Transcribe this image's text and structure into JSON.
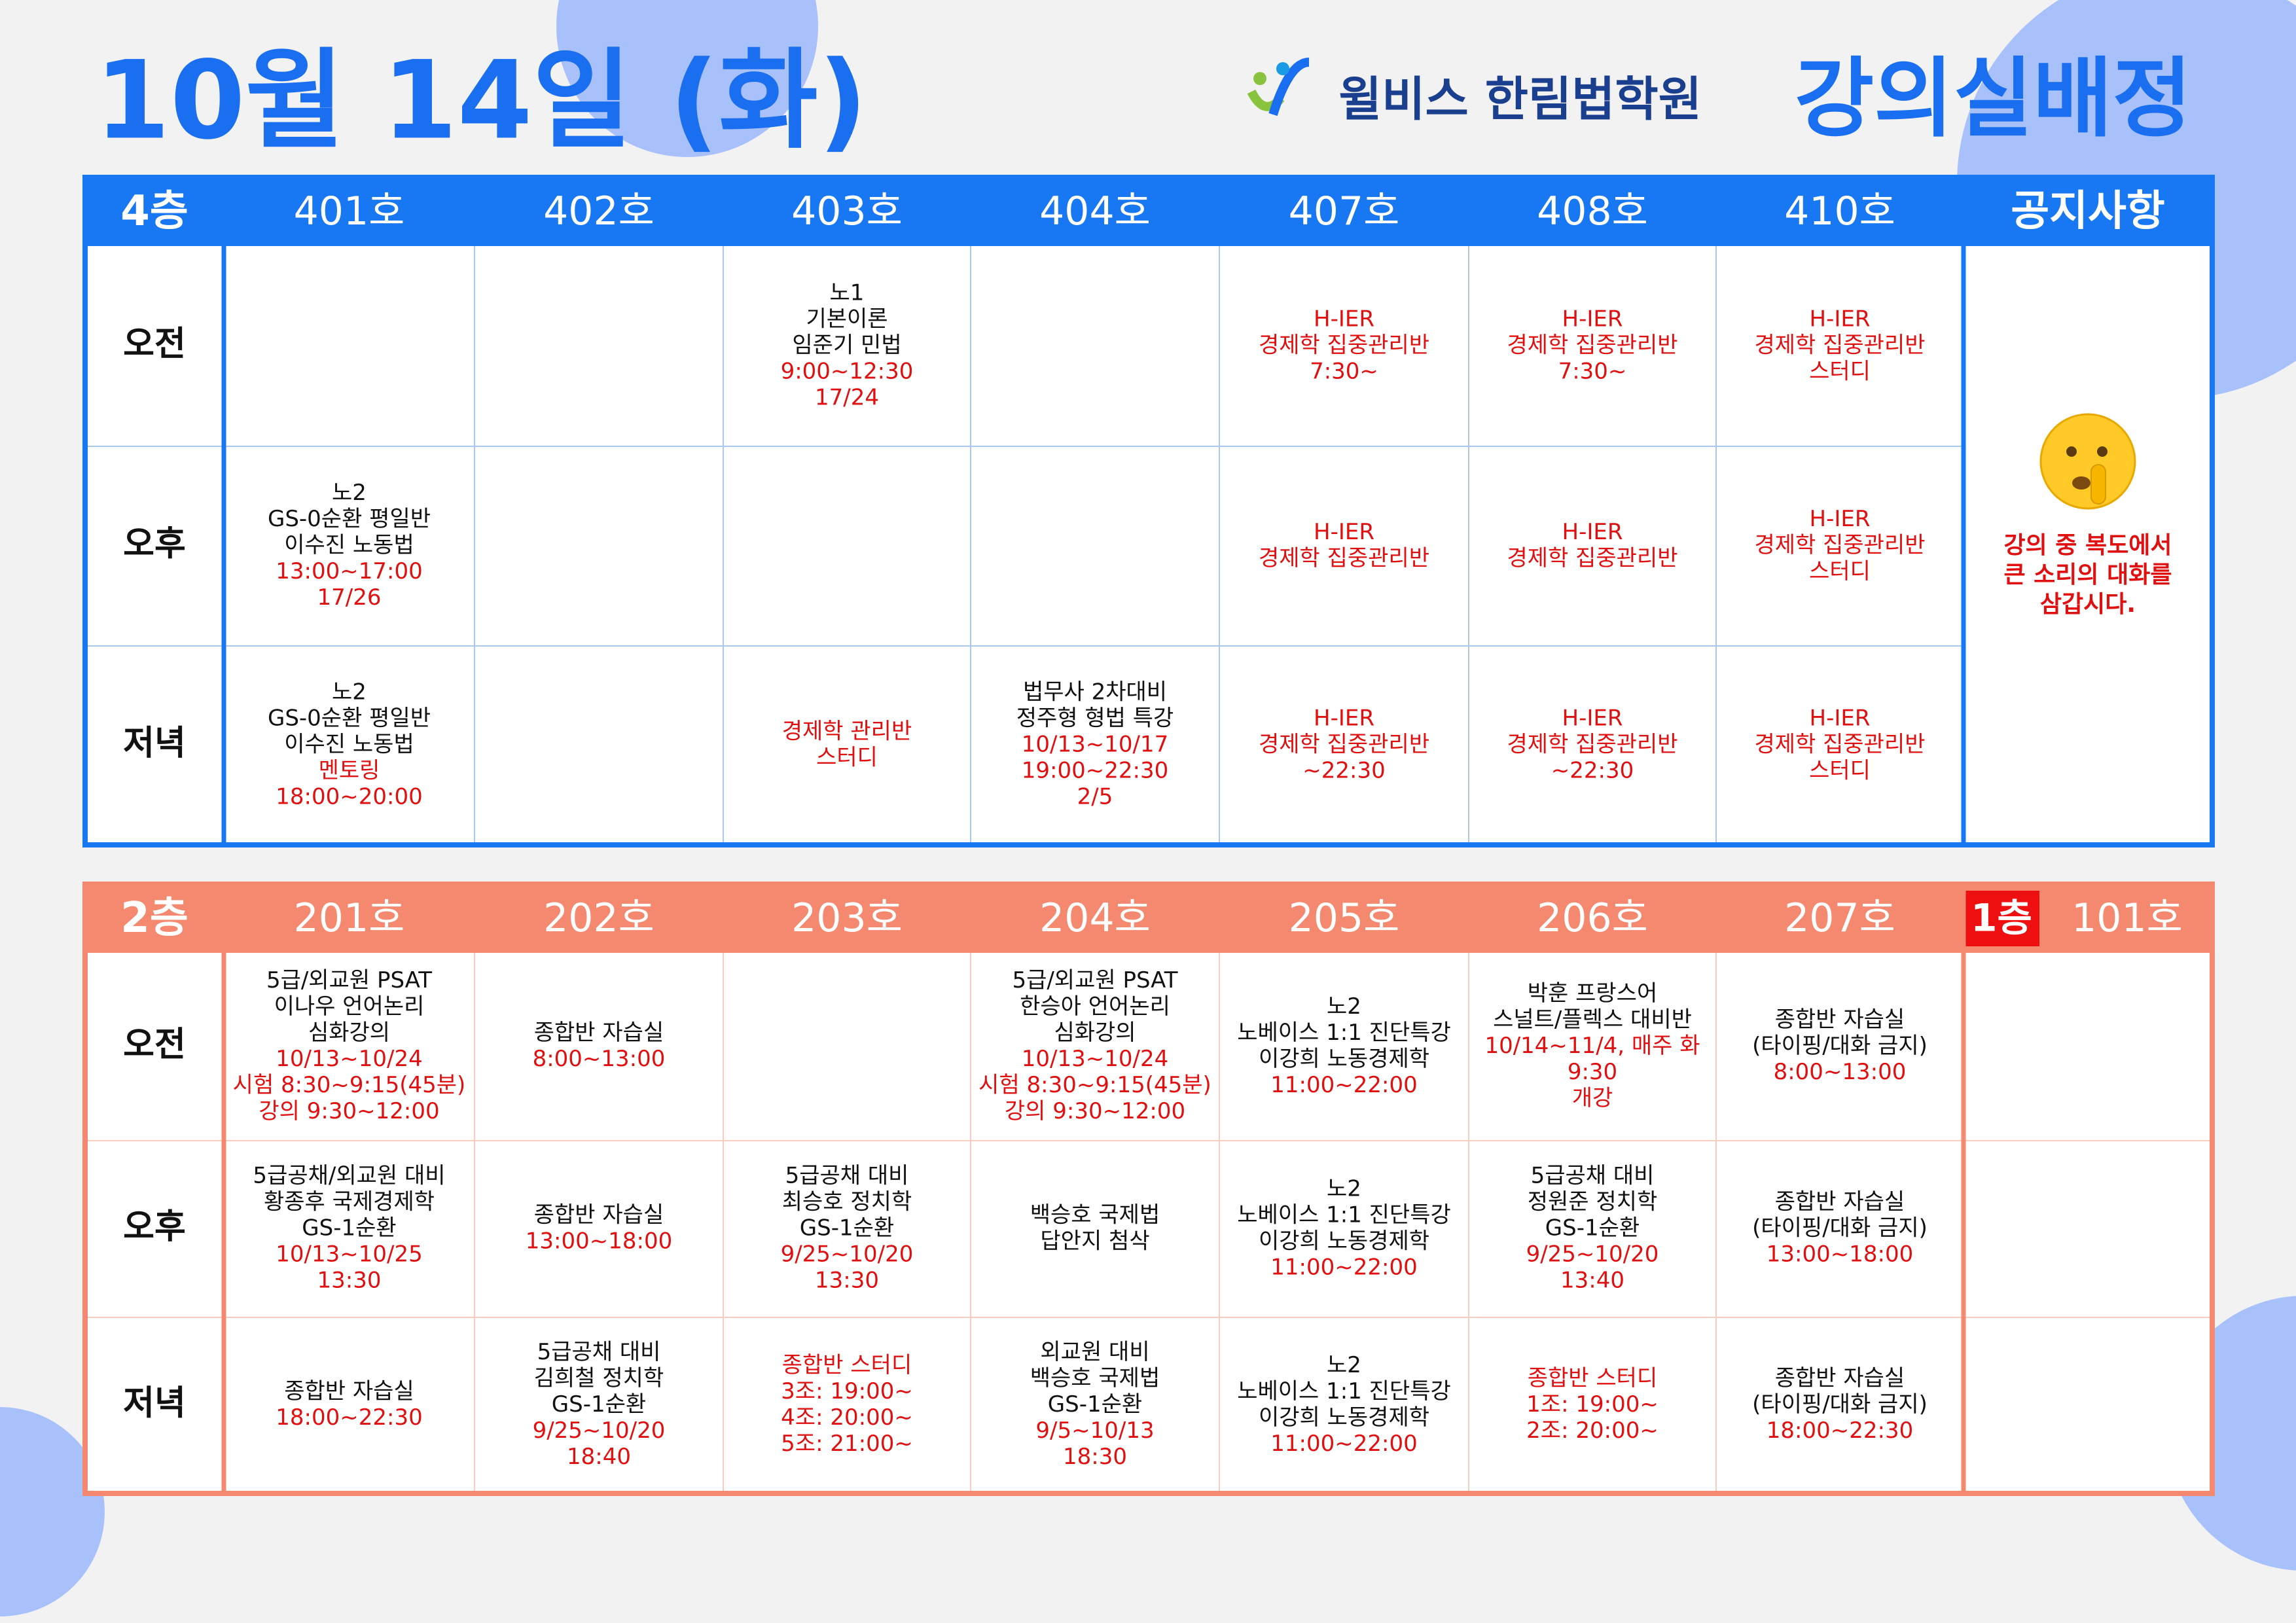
{
  "title": "10월 14일 (화)",
  "logo": "윌비스 한림법학원",
  "heading": "강의실배정",
  "floor4": {
    "label": "4층",
    "rooms": [
      "401호",
      "402호",
      "403호",
      "404호",
      "407호",
      "408호",
      "410호"
    ],
    "notice_title": "공지사항",
    "notice": [
      "강의 중 복도에서",
      "큰 소리의 대화를",
      "삼갑시다."
    ],
    "periods": [
      "오전",
      "오후",
      "저녁"
    ],
    "cells": [
      [
        null,
        null,
        {
          "lines": [
            "노1",
            "기본이론",
            "임준기 민법"
          ],
          "red_lines": [
            "9:00~12:30",
            "17/24"
          ]
        },
        null,
        {
          "red_lines": [
            "H-IER",
            "경제학 집중관리반",
            "7:30~"
          ]
        },
        {
          "red_lines": [
            "H-IER",
            "경제학 집중관리반",
            "7:30~"
          ]
        },
        {
          "red_lines": [
            "H-IER",
            "경제학 집중관리반",
            "스터디"
          ]
        }
      ],
      [
        {
          "lines": [
            "노2",
            "GS-0순환 평일반",
            "이수진 노동법"
          ],
          "red_lines": [
            "13:00~17:00",
            "17/26"
          ]
        },
        null,
        null,
        null,
        {
          "red_lines": [
            "H-IER",
            "경제학 집중관리반"
          ]
        },
        {
          "red_lines": [
            "H-IER",
            "경제학 집중관리반"
          ]
        },
        {
          "red_lines": [
            "H-IER",
            "경제학 집중관리반",
            "스터디"
          ]
        }
      ],
      [
        {
          "lines": [
            "노2",
            "GS-0순환 평일반",
            "이수진 노동법"
          ],
          "red_lines": [
            "멘토링",
            "18:00~20:00"
          ]
        },
        null,
        {
          "red_lines": [
            "경제학 관리반",
            "스터디"
          ]
        },
        {
          "lines": [
            "법무사 2차대비",
            "정주형 형법 특강"
          ],
          "red_lines": [
            "10/13~10/17",
            "19:00~22:30",
            "2/5"
          ]
        },
        {
          "red_lines": [
            "H-IER",
            "경제학 집중관리반",
            "~22:30"
          ]
        },
        {
          "red_lines": [
            "H-IER",
            "경제학 집중관리반",
            "~22:30"
          ]
        },
        {
          "red_lines": [
            "H-IER",
            "경제학 집중관리반",
            "스터디"
          ]
        }
      ]
    ]
  },
  "floor2": {
    "label": "2층",
    "rooms": [
      "201호",
      "202호",
      "203호",
      "204호",
      "205호",
      "206호",
      "207호"
    ],
    "floor1_label": "1층",
    "floor1_room": "101호",
    "periods": [
      "오전",
      "오후",
      "저녁"
    ],
    "cells": [
      [
        {
          "lines": [
            "5급/외교원 PSAT",
            "이나우 언어논리",
            "심화강의"
          ],
          "red_lines": [
            "10/13~10/24",
            "시험 8:30~9:15(45분)",
            "강의 9:30~12:00"
          ]
        },
        {
          "lines": [
            "종합반 자습실"
          ],
          "red_lines": [
            "8:00~13:00"
          ]
        },
        null,
        {
          "lines": [
            "5급/외교원 PSAT",
            "한승아 언어논리",
            "심화강의"
          ],
          "red_lines": [
            "10/13~10/24",
            "시험 8:30~9:15(45분)",
            "강의 9:30~12:00"
          ]
        },
        {
          "lines": [
            "노2",
            "노베이스 1:1 진단특강",
            "이강희 노동경제학"
          ],
          "red_lines": [
            "11:00~22:00"
          ]
        },
        {
          "lines": [
            "박훈 프랑스어",
            "스널트/플렉스 대비반"
          ],
          "red_lines": [
            "10/14~11/4, 매주 화",
            "9:30",
            "개강"
          ]
        },
        {
          "lines": [
            "종합반 자습실",
            "(타이핑/대화 금지)"
          ],
          "red_lines": [
            "8:00~13:00"
          ]
        },
        null
      ],
      [
        {
          "lines": [
            "5급공채/외교원 대비",
            "황종후 국제경제학",
            "GS-1순환"
          ],
          "red_lines": [
            "10/13~10/25",
            "13:30"
          ]
        },
        {
          "lines": [
            "종합반 자습실"
          ],
          "red_lines": [
            "13:00~18:00"
          ]
        },
        {
          "lines": [
            "5급공채 대비",
            "최승호 정치학",
            "GS-1순환"
          ],
          "red_lines": [
            "9/25~10/20",
            "13:30"
          ]
        },
        {
          "lines": [
            "백승호 국제법",
            "답안지 첨삭"
          ]
        },
        {
          "lines": [
            "노2",
            "노베이스 1:1 진단특강",
            "이강희 노동경제학"
          ],
          "red_lines": [
            "11:00~22:00"
          ]
        },
        {
          "lines": [
            "5급공채 대비",
            "정원준 정치학",
            "GS-1순환"
          ],
          "red_lines": [
            "9/25~10/20",
            "13:40"
          ]
        },
        {
          "lines": [
            "종합반 자습실",
            "(타이핑/대화 금지)"
          ],
          "red_lines": [
            "13:00~18:00"
          ]
        },
        null
      ],
      [
        {
          "lines": [
            "종합반 자습실"
          ],
          "red_lines": [
            "18:00~22:30"
          ]
        },
        {
          "lines": [
            "5급공채 대비",
            "김희철 정치학",
            "GS-1순환"
          ],
          "red_lines": [
            "9/25~10/20",
            "18:40"
          ]
        },
        {
          "red_lines": [
            "종합반 스터디",
            "3조: 19:00~",
            "4조: 20:00~",
            "5조: 21:00~"
          ]
        },
        {
          "lines": [
            "외교원 대비",
            "백승호 국제법",
            "GS-1순환"
          ],
          "red_lines": [
            "9/5~10/13",
            "18:30"
          ]
        },
        {
          "lines": [
            "노2",
            "노베이스 1:1 진단특강",
            "이강희 노동경제학"
          ],
          "red_lines": [
            "11:00~22:00"
          ]
        },
        {
          "red_lines": [
            "종합반 스터디",
            "1조: 19:00~",
            "2조: 20:00~"
          ]
        },
        {
          "lines": [
            "종합반 자습실",
            "(타이핑/대화 금지)"
          ],
          "red_lines": [
            "18:00~22:30"
          ]
        },
        null
      ]
    ]
  }
}
